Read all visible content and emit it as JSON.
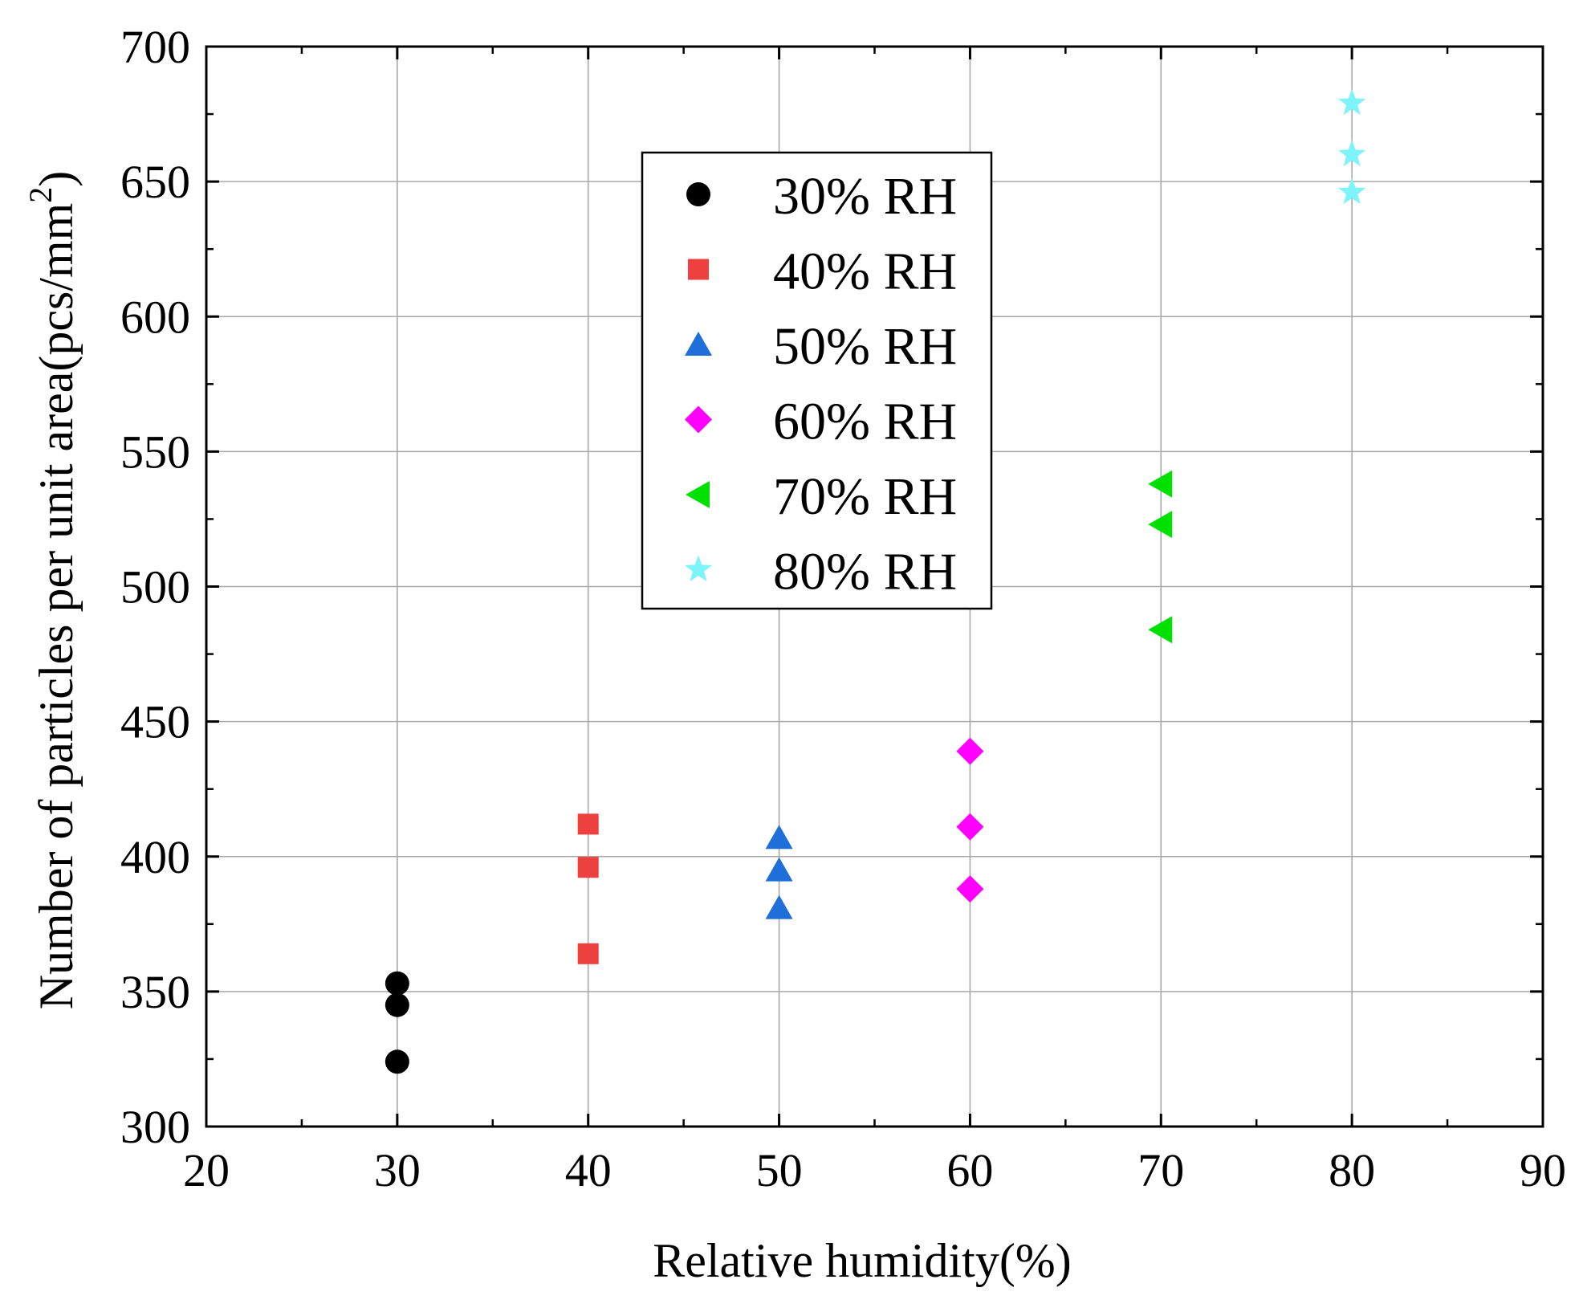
{
  "chart_data": {
    "type": "scatter",
    "title": "",
    "xlabel": "Relative humidity(%)",
    "ylabel": "Number of particles per unit area(pcs/mm",
    "ylabel_superscript": "2",
    "ylabel_suffix": ")",
    "xlim": [
      20,
      90
    ],
    "ylim": [
      300,
      700
    ],
    "xticks": [
      20,
      30,
      40,
      50,
      60,
      70,
      80,
      90
    ],
    "yticks": [
      300,
      350,
      400,
      450,
      500,
      550,
      600,
      650,
      700
    ],
    "xtick_labels": [
      "20",
      "30",
      "40",
      "50",
      "60",
      "70",
      "80",
      "90"
    ],
    "ytick_labels": [
      "300",
      "350",
      "400",
      "450",
      "500",
      "550",
      "600",
      "650",
      "700"
    ],
    "grid": true,
    "legend_position": "upper-center",
    "series": [
      {
        "name": "30% RH",
        "marker": "circle",
        "color": "#000000",
        "x": [
          30,
          30,
          30
        ],
        "y": [
          324,
          345,
          353
        ]
      },
      {
        "name": "40% RH",
        "marker": "square",
        "color": "#ef4040",
        "x": [
          40,
          40,
          40
        ],
        "y": [
          364,
          396,
          412
        ]
      },
      {
        "name": "50% RH",
        "marker": "triangle-up",
        "color": "#1f6fdb",
        "x": [
          50,
          50,
          50
        ],
        "y": [
          381,
          395,
          407
        ]
      },
      {
        "name": "60% RH",
        "marker": "diamond",
        "color": "#ff00ff",
        "x": [
          60,
          60,
          60
        ],
        "y": [
          388,
          411,
          439
        ]
      },
      {
        "name": "70% RH",
        "marker": "triangle-left",
        "color": "#00e000",
        "x": [
          70,
          70,
          70
        ],
        "y": [
          484,
          523,
          538
        ]
      },
      {
        "name": "80% RH",
        "marker": "star",
        "color": "#7df4f9",
        "x": [
          80,
          80,
          80
        ],
        "y": [
          646,
          660,
          679
        ]
      }
    ]
  }
}
